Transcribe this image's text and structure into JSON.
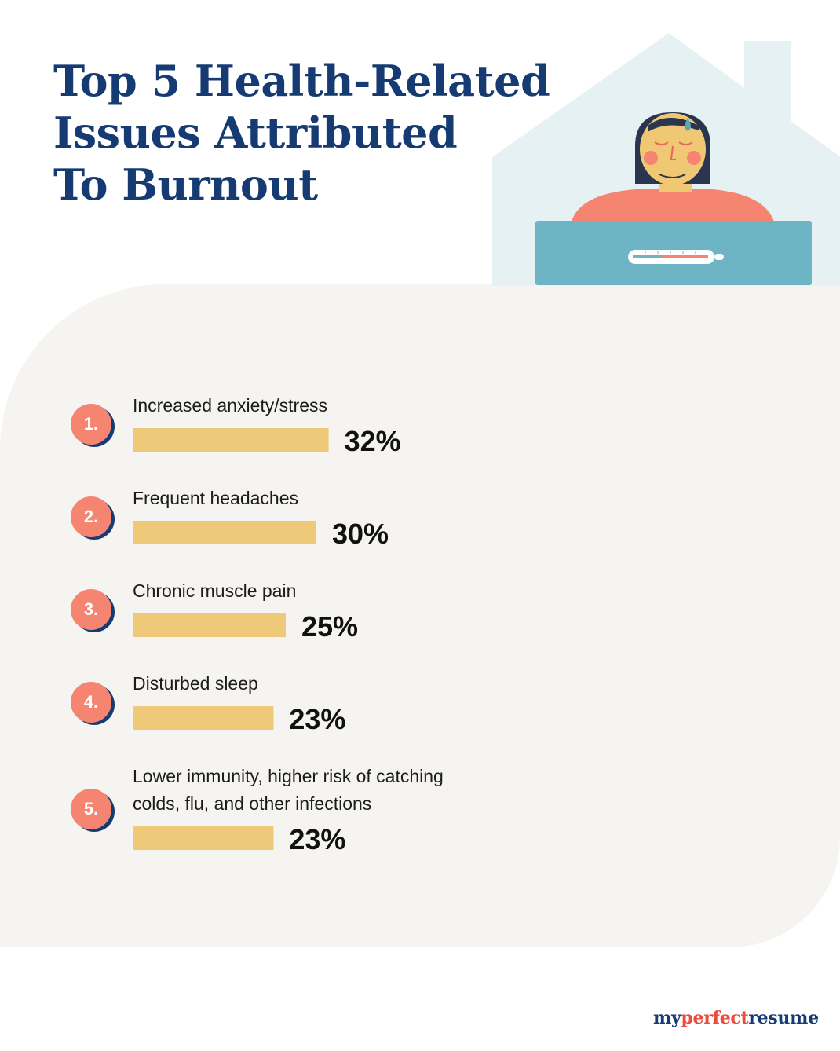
{
  "chart_data": {
    "type": "bar",
    "title": "Top 5 Health-Related Issues Attributed To Burnout",
    "title_lines": [
      "Top 5 Health-Related",
      "Issues Attributed",
      "To Burnout"
    ],
    "orientation": "horizontal",
    "categories": [
      "Increased anxiety/stress",
      "Frequent headaches",
      "Chronic muscle pain",
      "Disturbed sleep",
      "Lower immunity, higher risk of catching colds, flu, and other infections"
    ],
    "category_lines": [
      [
        "Increased anxiety/stress"
      ],
      [
        "Frequent headaches"
      ],
      [
        "Chronic muscle pain"
      ],
      [
        "Disturbed sleep"
      ],
      [
        "Lower immunity, higher risk of catching",
        "colds, flu, and other infections"
      ]
    ],
    "ranks": [
      "1.",
      "2.",
      "3.",
      "4.",
      "5."
    ],
    "values": [
      32,
      30,
      25,
      23,
      23
    ],
    "value_labels": [
      "32%",
      "30%",
      "25%",
      "23%",
      "23%"
    ],
    "unit": "%",
    "grid": false,
    "legend": "none"
  },
  "colors": {
    "title": "#163b73",
    "bar": "#efc97a",
    "badge": "#f58571",
    "badge_shadow": "#163b73",
    "panel": "#f5f4f0",
    "house": "#e6f1f3",
    "blanket": "#6db5c4",
    "body": "#f58571",
    "skin": "#f0c873",
    "hair": "#2a3550"
  },
  "brand": {
    "part1": "my",
    "part2": "perfect",
    "part3": "resume"
  }
}
